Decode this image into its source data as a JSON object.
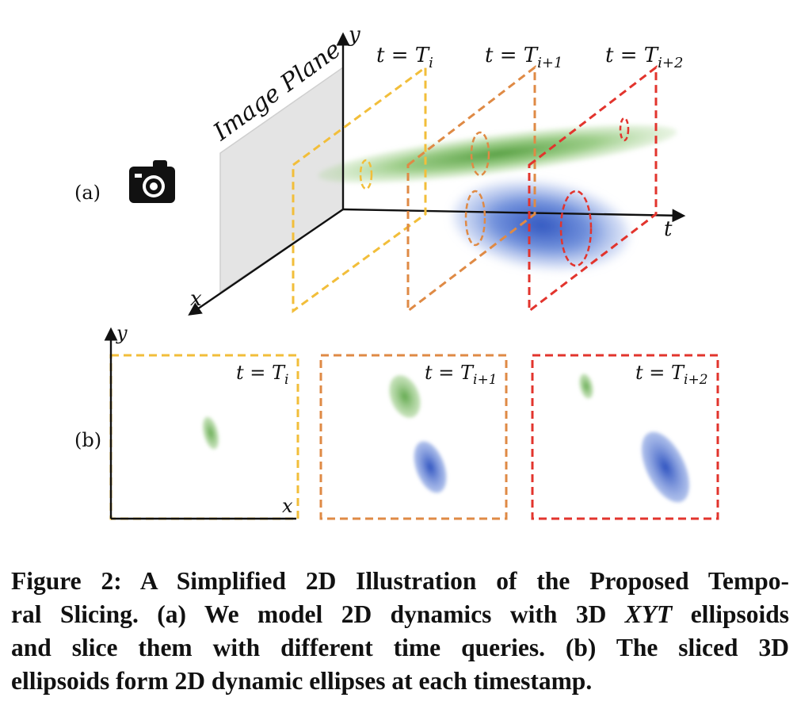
{
  "panel_a": {
    "label": "(a)",
    "image_plane_label": "Image Plane",
    "axis_x": "x",
    "axis_y": "y",
    "axis_t": "t",
    "slices": [
      {
        "prefix": "t = T",
        "sub": "i",
        "color": "#f2be3a"
      },
      {
        "prefix": "t = T",
        "sub": "i+1",
        "color": "#df8a45"
      },
      {
        "prefix": "t = T",
        "sub": "i+2",
        "color": "#e2342d"
      }
    ],
    "camera_icon": "camera-icon"
  },
  "panel_b": {
    "label": "(b)",
    "axis_x": "x",
    "axis_y": "y",
    "frames": [
      {
        "prefix": "t = T",
        "sub": "i",
        "color": "#f2be3a"
      },
      {
        "prefix": "t = T",
        "sub": "i+1",
        "color": "#df8a45"
      },
      {
        "prefix": "t = T",
        "sub": "i+2",
        "color": "#e2342d"
      }
    ]
  },
  "colors": {
    "green_ellipsoid": "#5da845",
    "blue_ellipsoid": "#3a5fc4",
    "plane_gray": "#e4e4e4"
  },
  "caption": {
    "line1": "Figure 2: A Simplified 2D Illustration of the Proposed Tempo-",
    "line2_pre": "ral Slicing. (a) We model 2D dynamics with 3D ",
    "line2_math": "XYT",
    "line2_post": " ellipsoids",
    "line3": "and slice them with different time queries. (b) The sliced 3D",
    "line4": "ellipsoids form 2D dynamic ellipses at each timestamp."
  }
}
